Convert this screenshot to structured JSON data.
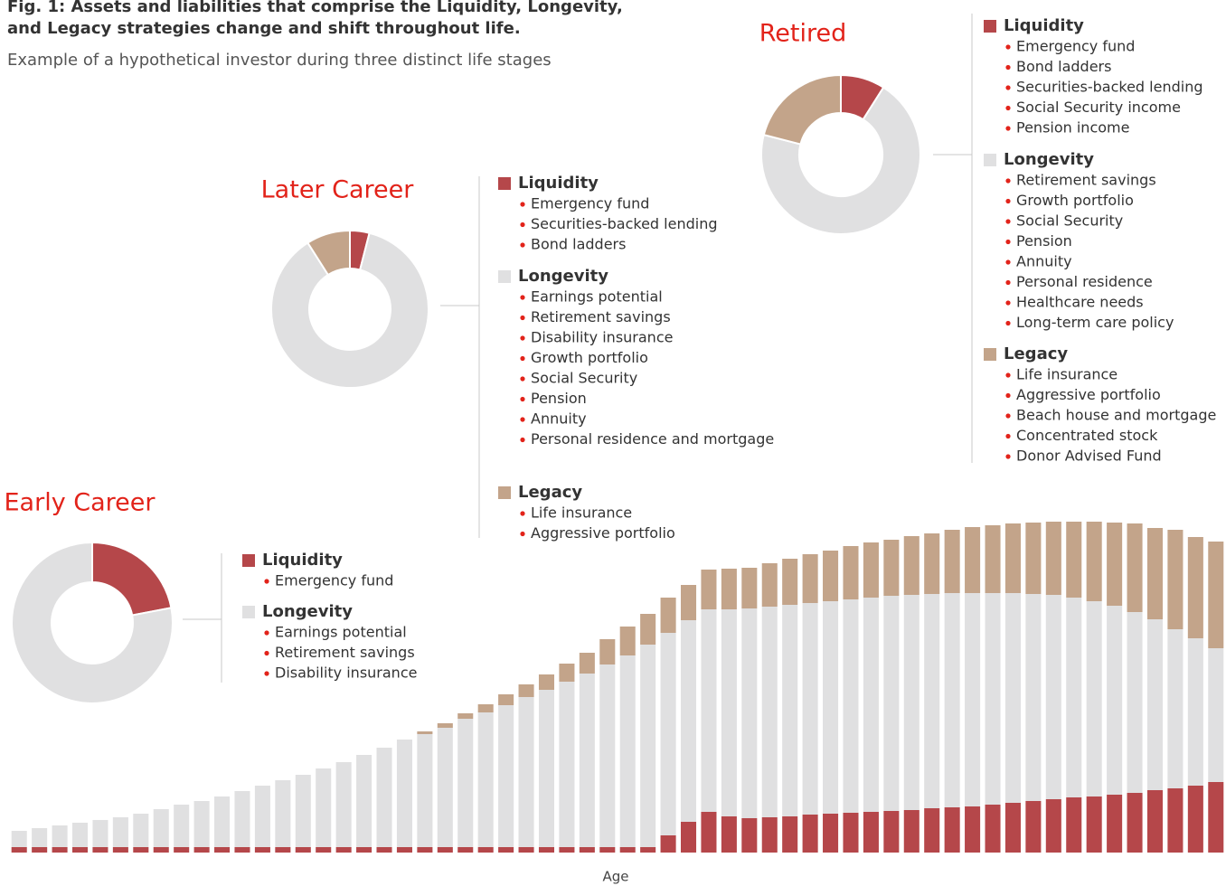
{
  "title_lines": [
    "Fig. 1: Assets and liabilities that comprise the Liquidity, Longevity,",
    "and Legacy strategies change and shift throughout life."
  ],
  "subtitle": "Example of a hypothetical investor during three distinct life stages",
  "chart_data": [
    {
      "type": "bar",
      "stacked": true,
      "x_label": "Age",
      "ylim": [
        0,
        400
      ],
      "categories": [
        null,
        null,
        null,
        null,
        null,
        null,
        null,
        null,
        null,
        null,
        null,
        null,
        null,
        null,
        null,
        null,
        null,
        null,
        null,
        null,
        null,
        null,
        null,
        null,
        null,
        null,
        null,
        null,
        null,
        null,
        null,
        null,
        null,
        null,
        null,
        null,
        null,
        null,
        null,
        null,
        null,
        null,
        null,
        null,
        null,
        null,
        null,
        null,
        null,
        null,
        null,
        null,
        null,
        null,
        null,
        null,
        null,
        null,
        null,
        null
      ],
      "series": [
        {
          "color": "#b5474a",
          "values": [
            6,
            6,
            6,
            6,
            6,
            6,
            6,
            6,
            6,
            6,
            6,
            6,
            6,
            6,
            6,
            6,
            6,
            6,
            6,
            6,
            6,
            6,
            6,
            6,
            6,
            6,
            6,
            6,
            6,
            6,
            6,
            6,
            19,
            34,
            45,
            40,
            38,
            39,
            40,
            42,
            43,
            44,
            45,
            46,
            47,
            49,
            50,
            51,
            53,
            55,
            57,
            59,
            61,
            62,
            64,
            66,
            69,
            71,
            74,
            78
          ]
        },
        {
          "color": "#e0e0e1",
          "values": [
            18,
            21,
            24,
            27,
            30,
            33,
            37,
            42,
            47,
            51,
            56,
            62,
            68,
            74,
            80,
            87,
            94,
            102,
            110,
            119,
            125,
            132,
            142,
            149,
            157,
            166,
            174,
            183,
            192,
            202,
            212,
            224,
            224,
            223,
            224,
            229,
            232,
            233,
            234,
            234,
            235,
            236,
            237,
            238,
            238,
            237,
            237,
            236,
            234,
            232,
            229,
            226,
            221,
            216,
            209,
            200,
            189,
            176,
            163,
            148
          ]
        },
        {
          "color": "#c3a48a",
          "values": [
            0,
            0,
            0,
            0,
            0,
            0,
            0,
            0,
            0,
            0,
            0,
            0,
            0,
            0,
            0,
            0,
            0,
            0,
            0,
            0,
            3,
            5,
            6,
            9,
            12,
            14,
            17,
            20,
            23,
            28,
            32,
            34,
            39,
            39,
            44,
            45,
            45,
            48,
            51,
            54,
            56,
            59,
            61,
            62,
            65,
            67,
            70,
            73,
            75,
            77,
            79,
            81,
            84,
            88,
            92,
            98,
            101,
            110,
            112,
            118
          ]
        }
      ]
    },
    {
      "type": "pie",
      "donut": true,
      "title": "Early Career",
      "categories": [
        "Liquidity",
        "Longevity"
      ],
      "values": [
        22,
        78
      ],
      "colors": [
        "#b5474a",
        "#e0e0e1"
      ],
      "items": [
        [
          "Emergency fund"
        ],
        [
          "Earnings potential",
          "Retirement savings",
          "Disability insurance"
        ]
      ]
    },
    {
      "type": "pie",
      "donut": true,
      "title": "Later Career",
      "categories": [
        "Liquidity",
        "Longevity",
        "Legacy"
      ],
      "values": [
        4,
        87,
        9
      ],
      "colors": [
        "#b5474a",
        "#e0e0e1",
        "#c3a48a"
      ],
      "items": [
        [
          "Emergency fund",
          "Securities-backed lending",
          "Bond ladders"
        ],
        [
          "Earnings potential",
          "Retirement savings",
          "Disability insurance",
          "Growth portfolio",
          "Social Security",
          "Pension",
          "Annuity",
          "Personal residence and mortgage"
        ],
        [
          "Life insurance",
          "Aggressive portfolio"
        ]
      ]
    },
    {
      "type": "pie",
      "donut": true,
      "title": "Retired",
      "categories": [
        "Liquidity",
        "Longevity",
        "Legacy"
      ],
      "values": [
        9,
        70,
        21
      ],
      "colors": [
        "#b5474a",
        "#e0e0e1",
        "#c3a48a"
      ],
      "items": [
        [
          "Emergency fund",
          "Bond ladders",
          "Securities-backed lending",
          "Social Security income",
          "Pension income"
        ],
        [
          "Retirement savings",
          "Growth portfolio",
          "Social Security",
          "Pension",
          "Annuity",
          "Personal residence",
          "Healthcare needs",
          "Long-term care policy"
        ],
        [
          "Life insurance",
          "Aggressive portfolio",
          "Beach house and mortgage",
          "Concentrated stock",
          "Donor Advised Fund"
        ]
      ]
    }
  ]
}
